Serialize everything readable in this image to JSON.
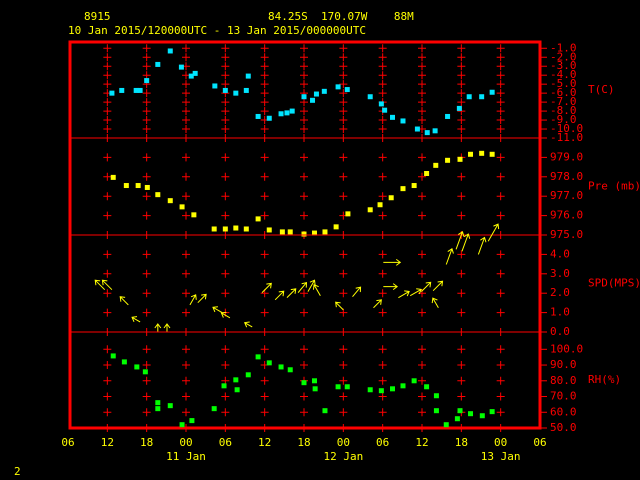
{
  "header": {
    "station": "8915",
    "location": "84.25S  170.07W    88M",
    "period": "10 Jan 2015/120000UTC - 13 Jan 2015/000000UTC",
    "page": "2"
  },
  "x_axis": {
    "xlim": [
      6,
      78
    ],
    "xticks": [
      {
        "value": 6,
        "label": "06"
      },
      {
        "value": 12,
        "label": "12"
      },
      {
        "value": 18,
        "label": "18"
      },
      {
        "value": 24,
        "label": "00"
      },
      {
        "value": 30,
        "label": "06"
      },
      {
        "value": 36,
        "label": "12"
      },
      {
        "value": 42,
        "label": "18"
      },
      {
        "value": 48,
        "label": "00"
      },
      {
        "value": 54,
        "label": "06"
      },
      {
        "value": 60,
        "label": "12"
      },
      {
        "value": 66,
        "label": "18"
      },
      {
        "value": 72,
        "label": "00"
      },
      {
        "value": 78,
        "label": "06"
      }
    ],
    "dates": [
      {
        "value": 24,
        "label": "11 Jan"
      },
      {
        "value": 48,
        "label": "12 Jan"
      },
      {
        "value": 72,
        "label": "13 Jan"
      }
    ]
  },
  "chart_data": [
    {
      "type": "scatter",
      "ylabel": "T(C)",
      "color": "#00e5ff",
      "ylim": [
        -11,
        -0.3
      ],
      "yticks": [
        {
          "value": -1,
          "label": "-1.0"
        },
        {
          "value": -2,
          "label": "-2.0"
        },
        {
          "value": -3,
          "label": "-3.0"
        },
        {
          "value": -4,
          "label": "-4.0"
        },
        {
          "value": -5,
          "label": "-5.0"
        },
        {
          "value": -6,
          "label": "-6.0"
        },
        {
          "value": -7,
          "label": "-7.0"
        },
        {
          "value": -8,
          "label": "-8.0"
        },
        {
          "value": -9,
          "label": "-9.0"
        },
        {
          "value": -10,
          "label": "-10.0"
        },
        {
          "value": -11,
          "label": "-11.0"
        }
      ],
      "x": [
        12.7,
        14.2,
        16.4,
        17,
        18,
        19.7,
        21.6,
        23.3,
        24.8,
        25.4,
        28.4,
        30,
        31.6,
        33.2,
        33.5,
        35,
        36.7,
        38.5,
        39.4,
        40.2,
        42,
        43.3,
        43.9,
        45.1,
        47.2,
        48.6,
        52.1,
        53.8,
        54.3,
        55.5,
        57.1,
        59.3,
        60.8,
        62,
        63.9,
        65.7,
        67.2,
        69.1,
        70.7
      ],
      "values": [
        -6.0,
        -5.7,
        -5.7,
        -5.7,
        -4.6,
        -2.8,
        -1.3,
        -3.1,
        -4.1,
        -3.8,
        -5.2,
        -5.7,
        -6.0,
        -5.7,
        -4.1,
        -8.6,
        -8.8,
        -8.3,
        -8.2,
        -8.0,
        -6.4,
        -6.8,
        -6.1,
        -5.8,
        -5.3,
        -5.6,
        -6.4,
        -7.2,
        -7.9,
        -8.7,
        -9.1,
        -10.0,
        -10.4,
        -10.2,
        -8.6,
        -7.7,
        -6.4,
        -6.4,
        -5.9
      ]
    },
    {
      "type": "scatter",
      "ylabel": "Pre (mb)",
      "color": "#ffff00",
      "ylim": [
        975,
        980
      ],
      "yticks": [
        {
          "value": 979,
          "label": "979.0"
        },
        {
          "value": 978,
          "label": "978.0"
        },
        {
          "value": 977,
          "label": "977.0"
        },
        {
          "value": 976,
          "label": "976.0"
        },
        {
          "value": 975,
          "label": "975.0"
        }
      ],
      "x": [
        12.9,
        14.9,
        16.7,
        18.1,
        19.7,
        21.6,
        23.4,
        25.2,
        28.3,
        30,
        31.6,
        33.2,
        35,
        36.7,
        38.7,
        39.9,
        42,
        43.6,
        45.2,
        46.9,
        48.7,
        52.1,
        53.6,
        55.3,
        57.1,
        58.8,
        60.7,
        62.1,
        63.9,
        65.8,
        67.4,
        69.1,
        70.7
      ],
      "values": [
        977.97,
        977.55,
        977.55,
        977.45,
        977.08,
        976.77,
        976.45,
        976.04,
        975.31,
        975.31,
        975.36,
        975.31,
        975.83,
        975.26,
        975.16,
        975.16,
        975.05,
        975.1,
        975.16,
        975.42,
        976.09,
        976.3,
        976.56,
        976.92,
        977.39,
        977.55,
        978.17,
        978.59,
        978.85,
        978.9,
        979.16,
        979.21,
        979.16
      ]
    },
    {
      "type": "vector",
      "ylabel": "SPD(MPS)",
      "color": "#ffff00",
      "ylim": [
        0,
        5
      ],
      "yticks": [
        {
          "value": 4,
          "label": "4.0"
        },
        {
          "value": 3,
          "label": "3.0"
        },
        {
          "value": 2,
          "label": "2.0"
        },
        {
          "value": 1,
          "label": "1.0"
        },
        {
          "value": 0,
          "label": "0.0"
        }
      ],
      "x": [
        11.6,
        12.7,
        15.2,
        17,
        19.7,
        21.1,
        24.6,
        25.8,
        29.5,
        30.7,
        34.1,
        35.6,
        37.6,
        39.4,
        41.1,
        42.6,
        44.5,
        48,
        49.4,
        52.6,
        54.1,
        54.1,
        56.4,
        58.2,
        59.9,
        61.7,
        62.5,
        63.7,
        65.2,
        66.1,
        68.6,
        70.1
      ],
      "values": [
        2.18,
        2.18,
        1.4,
        0.52,
        0,
        0,
        1.4,
        1.51,
        1.0,
        0.73,
        0.26,
        2.03,
        1.66,
        1.77,
        2.03,
        2.08,
        1.87,
        1.14,
        1.82,
        1.25,
        3.59,
        2.34,
        1.77,
        1.87,
        2.08,
        2.13,
        1.25,
        3.48,
        4.26,
        4.16,
        4.0,
        4.68
      ],
      "directions": [
        315,
        315,
        315,
        300,
        0,
        0,
        30,
        45,
        300,
        300,
        300,
        45,
        45,
        45,
        40,
        30,
        330,
        315,
        40,
        45,
        90,
        90,
        60,
        60,
        45,
        45,
        330,
        20,
        20,
        20,
        20,
        30
      ]
    },
    {
      "type": "scatter",
      "ylabel": "RH(%)",
      "color": "#00ff00",
      "ylim": [
        50,
        111
      ],
      "yticks": [
        {
          "value": 100,
          "label": "100.0"
        },
        {
          "value": 90,
          "label": "90.0"
        },
        {
          "value": 80,
          "label": "80.0"
        },
        {
          "value": 70,
          "label": "70.0"
        },
        {
          "value": 60,
          "label": "60.0"
        },
        {
          "value": 50,
          "label": "50.0"
        }
      ],
      "x": [
        12.9,
        14.6,
        16.5,
        17.8,
        19.7,
        19.7,
        21.6,
        23.4,
        24.9,
        28.3,
        29.8,
        31.6,
        31.8,
        33.5,
        35,
        36.7,
        38.5,
        39.9,
        42,
        43.6,
        43.7,
        45.2,
        47.2,
        48.6,
        52.1,
        53.8,
        55.5,
        57.1,
        58.8,
        60.7,
        62.2,
        62.2,
        63.7,
        65.4,
        65.8,
        67.4,
        69.2,
        70.7
      ],
      "values": [
        95.8,
        92.0,
        88.8,
        85.7,
        66.1,
        62.3,
        64.2,
        52.1,
        54.7,
        62.3,
        76.8,
        80.6,
        74.3,
        83.8,
        95.2,
        91.4,
        88.8,
        87.0,
        78.8,
        80.0,
        74.9,
        61.0,
        76.2,
        76.2,
        74.3,
        73.7,
        74.9,
        76.8,
        80.0,
        76.2,
        61.0,
        70.5,
        52.1,
        55.9,
        61.0,
        59.1,
        57.8,
        60.4
      ]
    }
  ]
}
